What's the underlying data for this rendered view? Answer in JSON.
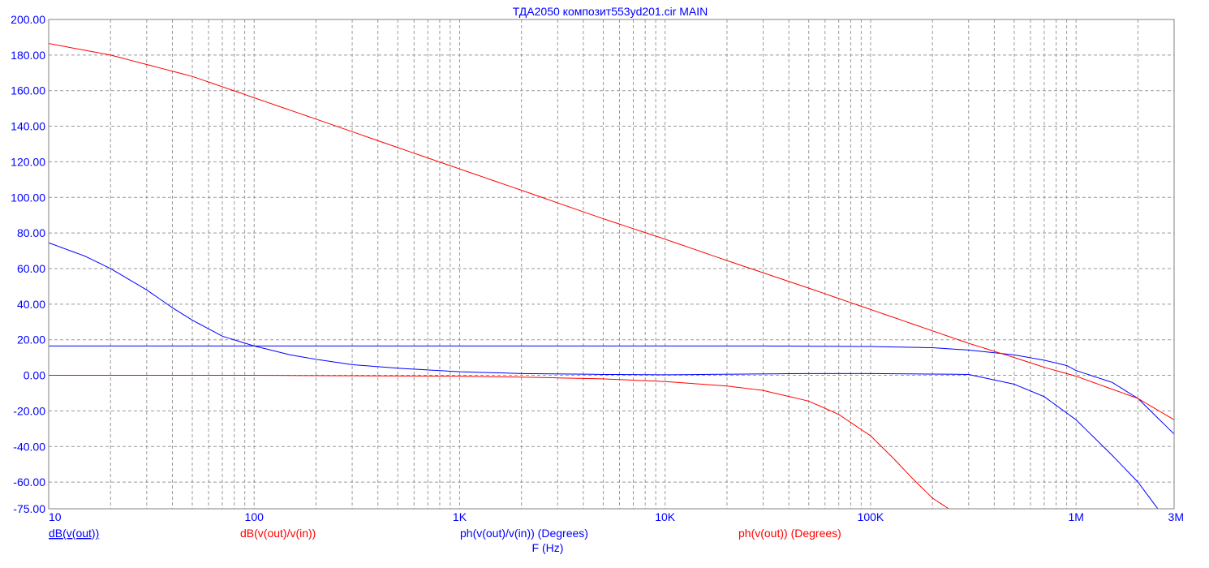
{
  "chart_data": {
    "type": "line",
    "title": "ТДА2050  композит553yd201.cir MAIN",
    "xlabel": "F (Hz)",
    "x_scale": "log",
    "xlim": [
      10,
      3000000
    ],
    "ylim": [
      -75,
      200
    ],
    "grid": true,
    "y_ticks": [
      200,
      180,
      160,
      140,
      120,
      100,
      80,
      60,
      40,
      20,
      0,
      -20,
      -40,
      -60,
      -75
    ],
    "y_tick_labels": [
      "200.00",
      "180.00",
      "160.00",
      "140.00",
      "120.00",
      "100.00",
      "80.00",
      "60.00",
      "40.00",
      "20.00",
      "0.00",
      "-20.00",
      "-40.00",
      "-60.00",
      "-75.00"
    ],
    "x_ticks": [
      10,
      100,
      1000,
      10000,
      100000,
      1000000,
      3000000
    ],
    "x_tick_labels": [
      "10",
      "100",
      "1K",
      "10K",
      "100K",
      "1M",
      "3M"
    ],
    "legend_entries": [
      {
        "label": "dB(v(out))",
        "color": "#0000ff",
        "underline": true
      },
      {
        "label": "dB(v(out)/v(in))",
        "color": "#ff0000",
        "underline": false
      },
      {
        "label": "ph(v(out)/v(in)) (Degrees)",
        "color": "#0000ff",
        "underline": false
      },
      {
        "label": "ph(v(out)) (Degrees)",
        "color": "#ff0000",
        "underline": false
      }
    ],
    "series": [
      {
        "color": "#0000ff",
        "x": [
          10,
          20,
          40,
          70,
          100,
          200,
          400,
          1000,
          3000,
          10000,
          30000,
          100000,
          200000,
          300000,
          500000,
          700000,
          900000,
          1000000,
          1500000,
          2000000,
          3000000
        ],
        "y": [
          16.5,
          16.5,
          16.5,
          16.5,
          16.5,
          16.5,
          16.5,
          16.5,
          16.5,
          16.5,
          16.5,
          16.2,
          15.5,
          14.2,
          11.5,
          8.5,
          5.5,
          2.7,
          -4.0,
          -13.0,
          -33.0
        ]
      },
      {
        "color": "#ff0000",
        "x": [
          10,
          20,
          50,
          100,
          200,
          500,
          1000,
          2000,
          5000,
          10000,
          20000,
          50000,
          100000,
          200000,
          300000,
          500000,
          700000,
          1000000,
          2000000,
          3000000
        ],
        "y": [
          186.5,
          180,
          168,
          156,
          144,
          128,
          116,
          104,
          88,
          76.5,
          64.5,
          49,
          37,
          25,
          18,
          10,
          4.5,
          -0.5,
          -13,
          -25
        ]
      },
      {
        "color": "#0000ff",
        "x": [
          10,
          15,
          20,
          30,
          40,
          50,
          70,
          100,
          150,
          200,
          300,
          500,
          1000,
          2000,
          5000,
          10000,
          50000,
          100000,
          300000,
          500000,
          700000,
          1000000,
          1500000,
          2000000,
          2500000
        ],
        "y": [
          74.5,
          67,
          60,
          48,
          38,
          31,
          22,
          16.5,
          11.5,
          9,
          6,
          4,
          2,
          1,
          0.5,
          0.3,
          1,
          1,
          0.5,
          -5,
          -12,
          -25,
          -45,
          -60,
          -75
        ]
      },
      {
        "color": "#ff0000",
        "x": [
          10,
          100,
          1000,
          2000,
          5000,
          10000,
          20000,
          30000,
          50000,
          70000,
          100000,
          130000,
          160000,
          200000,
          240000
        ],
        "y": [
          0,
          0,
          -0.5,
          -1,
          -2,
          -3.5,
          -6,
          -8.5,
          -14.5,
          -22,
          -34,
          -47,
          -58,
          -69,
          -75
        ]
      }
    ]
  }
}
